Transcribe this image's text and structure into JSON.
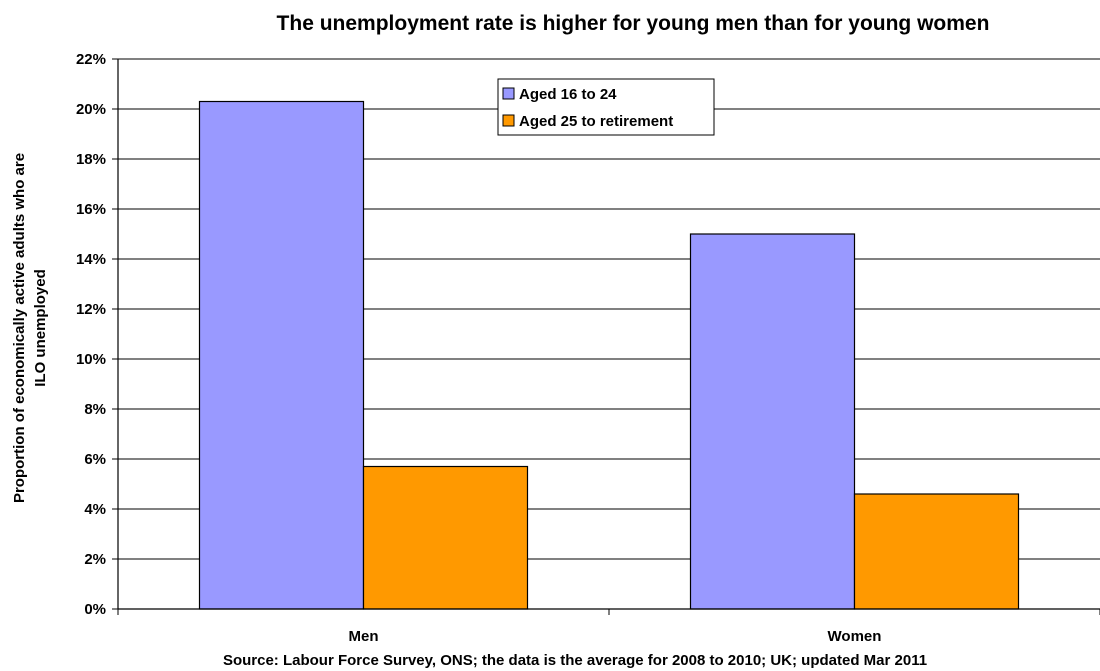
{
  "chart_data": {
    "type": "bar",
    "title": "The unemployment rate is higher for young men than for young women",
    "ylabel_lines": [
      "Proportion of economically active adults who are",
      "ILO unemployed"
    ],
    "xlabel": "",
    "source": "Source: Labour Force Survey, ONS; the data is the average for 2008 to 2010; UK; updated Mar 2011",
    "categories": [
      "Men",
      "Women"
    ],
    "series": [
      {
        "name": "Aged 16 to 24",
        "color": "#9999FF",
        "values": [
          20.3,
          15.0
        ]
      },
      {
        "name": "Aged 25 to retirement",
        "color": "#FF9900",
        "values": [
          5.7,
          4.6
        ]
      }
    ],
    "ylim": [
      0,
      22
    ],
    "yticks": [
      0,
      2,
      4,
      6,
      8,
      10,
      12,
      14,
      16,
      18,
      20,
      22
    ],
    "ytick_suffix": "%",
    "grid": true,
    "legend_position": "top-center"
  }
}
